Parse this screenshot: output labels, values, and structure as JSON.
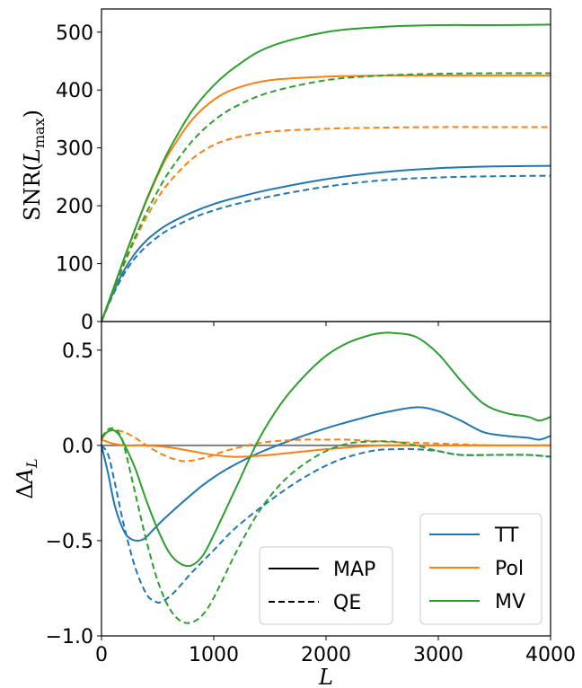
{
  "figure": {
    "top_ylabel": "SNR(L_max)",
    "top_ylabel_main": "SNR(",
    "top_ylabel_var": "L",
    "top_ylabel_sub": "max",
    "top_ylabel_close": ")",
    "bottom_ylabel_delta": "Δ",
    "bottom_ylabel_var": "A",
    "bottom_ylabel_sub": "L",
    "xlabel": "L"
  },
  "legend_style": {
    "title": "",
    "entries": [
      {
        "label": "MAP",
        "dash": "solid"
      },
      {
        "label": "QE",
        "dash": "dashed"
      }
    ]
  },
  "legend_color": {
    "title": "",
    "entries": [
      {
        "label": "TT",
        "color": "#1f77b4"
      },
      {
        "label": "Pol",
        "color": "#ff7f0e"
      },
      {
        "label": "MV",
        "color": "#2ca02c"
      }
    ]
  },
  "chart_data": [
    {
      "type": "line",
      "panel": "top",
      "xlim": [
        0,
        4000
      ],
      "ylim": [
        0,
        540
      ],
      "xticks": [
        0,
        1000,
        2000,
        3000,
        4000
      ],
      "yticks": [
        0,
        100,
        200,
        300,
        400,
        500
      ],
      "ylabel": "SNR(L_max)",
      "series": [
        {
          "name": "TT",
          "style": "solid",
          "color": "#1f77b4",
          "x": [
            0,
            100,
            200,
            300,
            400,
            500,
            600,
            800,
            1000,
            1200,
            1500,
            2000,
            2500,
            3000,
            3500,
            4000
          ],
          "y": [
            0,
            48,
            88,
            118,
            140,
            156,
            169,
            188,
            203,
            214,
            228,
            246,
            258,
            265,
            268,
            269
          ]
        },
        {
          "name": "TT",
          "style": "dashed",
          "color": "#1f77b4",
          "x": [
            0,
            100,
            200,
            300,
            400,
            500,
            600,
            800,
            1000,
            1200,
            1500,
            2000,
            2500,
            3000,
            3500,
            4000
          ],
          "y": [
            0,
            45,
            82,
            110,
            130,
            146,
            159,
            178,
            192,
            203,
            216,
            233,
            244,
            249,
            251,
            252
          ]
        },
        {
          "name": "Pol",
          "style": "solid",
          "color": "#ff7f0e",
          "x": [
            0,
            100,
            200,
            300,
            400,
            500,
            600,
            800,
            1000,
            1200,
            1500,
            2000,
            2500,
            3000,
            3500,
            4000
          ],
          "y": [
            0,
            53,
            108,
            160,
            208,
            252,
            290,
            347,
            383,
            403,
            417,
            423,
            425,
            425,
            425,
            425
          ]
        },
        {
          "name": "Pol",
          "style": "dashed",
          "color": "#ff7f0e",
          "x": [
            0,
            100,
            200,
            300,
            400,
            500,
            600,
            800,
            1000,
            1200,
            1500,
            2000,
            2500,
            3000,
            3500,
            4000
          ],
          "y": [
            0,
            50,
            98,
            142,
            180,
            213,
            240,
            280,
            305,
            318,
            328,
            333,
            335,
            336,
            336,
            336
          ]
        },
        {
          "name": "MV",
          "style": "solid",
          "color": "#2ca02c",
          "x": [
            0,
            100,
            200,
            300,
            400,
            500,
            600,
            800,
            1000,
            1200,
            1500,
            2000,
            2500,
            3000,
            3500,
            4000
          ],
          "y": [
            0,
            54,
            108,
            160,
            210,
            255,
            296,
            362,
            408,
            441,
            475,
            500,
            509,
            512,
            512,
            513
          ]
        },
        {
          "name": "MV",
          "style": "dashed",
          "color": "#2ca02c",
          "x": [
            0,
            100,
            200,
            300,
            400,
            500,
            600,
            800,
            1000,
            1200,
            1500,
            2000,
            2500,
            3000,
            3500,
            4000
          ],
          "y": [
            0,
            50,
            100,
            146,
            188,
            225,
            258,
            310,
            347,
            372,
            396,
            417,
            425,
            428,
            429,
            429
          ]
        }
      ]
    },
    {
      "type": "line",
      "panel": "bottom",
      "xlim": [
        0,
        4000
      ],
      "ylim": [
        -1.0,
        0.65
      ],
      "xticks": [
        0,
        1000,
        2000,
        3000,
        4000
      ],
      "yticks": [
        -1.0,
        -0.5,
        0.0,
        0.5
      ],
      "ytick_labels": [
        "−1.0",
        "−0.5",
        "0.0",
        "0.5"
      ],
      "xlabel": "L",
      "ylabel": "ΔA_L",
      "reference_line": {
        "y": 0,
        "color": "#7f7f7f"
      },
      "series": [
        {
          "name": "TT",
          "style": "solid",
          "color": "#1f77b4",
          "x": [
            0,
            60,
            120,
            200,
            260,
            320,
            380,
            450,
            550,
            700,
            900,
            1100,
            1400,
            1700,
            2000,
            2300,
            2500,
            2800,
            3000,
            3200,
            3400,
            3600,
            3800,
            3900,
            4000
          ],
          "y": [
            0,
            -0.15,
            -0.32,
            -0.45,
            -0.49,
            -0.5,
            -0.49,
            -0.45,
            -0.39,
            -0.31,
            -0.21,
            -0.13,
            -0.04,
            0.03,
            0.09,
            0.14,
            0.17,
            0.2,
            0.18,
            0.13,
            0.07,
            0.05,
            0.04,
            0.03,
            0.05
          ]
        },
        {
          "name": "TT",
          "style": "dashed",
          "color": "#1f77b4",
          "x": [
            0,
            60,
            120,
            200,
            300,
            400,
            480,
            540,
            650,
            800,
            1000,
            1200,
            1500,
            1800,
            2100,
            2400,
            2600,
            2800,
            3000,
            3200,
            3500,
            3800,
            4000
          ],
          "y": [
            0,
            -0.05,
            -0.2,
            -0.42,
            -0.64,
            -0.78,
            -0.82,
            -0.82,
            -0.77,
            -0.67,
            -0.55,
            -0.43,
            -0.29,
            -0.17,
            -0.08,
            -0.03,
            -0.02,
            -0.02,
            -0.03,
            -0.05,
            -0.05,
            -0.05,
            -0.06
          ]
        },
        {
          "name": "Pol",
          "style": "solid",
          "color": "#ff7f0e",
          "x": [
            0,
            100,
            200,
            300,
            400,
            600,
            800,
            1000,
            1200,
            1500,
            2000,
            2500,
            3000,
            3500,
            4000
          ],
          "y": [
            0.03,
            0.01,
            0.0,
            0.0,
            0.0,
            -0.01,
            -0.03,
            -0.05,
            -0.06,
            -0.05,
            -0.02,
            0.0,
            0.0,
            0.0,
            0.0
          ]
        },
        {
          "name": "Pol",
          "style": "dashed",
          "color": "#ff7f0e",
          "x": [
            0,
            50,
            120,
            200,
            300,
            400,
            550,
            700,
            800,
            950,
            1100,
            1300,
            1500,
            1800,
            2000,
            2200,
            2500,
            3000,
            3500,
            4000
          ],
          "y": [
            0.03,
            0.07,
            0.08,
            0.07,
            0.04,
            0.0,
            -0.05,
            -0.08,
            -0.08,
            -0.06,
            -0.03,
            0.0,
            0.02,
            0.03,
            0.03,
            0.03,
            0.02,
            0.01,
            0.0,
            0.0
          ]
        },
        {
          "name": "MV",
          "style": "solid",
          "color": "#2ca02c",
          "x": [
            0,
            50,
            100,
            150,
            200,
            300,
            400,
            500,
            600,
            700,
            800,
            900,
            1000,
            1200,
            1400,
            1600,
            1800,
            2000,
            2200,
            2400,
            2500,
            2600,
            2800,
            3000,
            3200,
            3400,
            3600,
            3800,
            3900,
            4000
          ],
          "y": [
            0.04,
            0.07,
            0.08,
            0.06,
            0.01,
            -0.12,
            -0.29,
            -0.44,
            -0.56,
            -0.62,
            -0.63,
            -0.58,
            -0.47,
            -0.22,
            0.03,
            0.22,
            0.36,
            0.47,
            0.54,
            0.58,
            0.59,
            0.59,
            0.57,
            0.48,
            0.34,
            0.22,
            0.17,
            0.15,
            0.13,
            0.15
          ]
        },
        {
          "name": "MV",
          "style": "dashed",
          "color": "#2ca02c",
          "x": [
            0,
            50,
            100,
            150,
            200,
            300,
            400,
            500,
            600,
            700,
            800,
            900,
            1000,
            1200,
            1400,
            1600,
            1800,
            2000,
            2200,
            2400,
            2600,
            2800,
            3000,
            3200,
            3500,
            3800,
            4000
          ],
          "y": [
            0.04,
            0.08,
            0.09,
            0.07,
            0.0,
            -0.25,
            -0.5,
            -0.71,
            -0.85,
            -0.92,
            -0.93,
            -0.89,
            -0.8,
            -0.56,
            -0.35,
            -0.2,
            -0.1,
            -0.03,
            0.01,
            0.02,
            0.02,
            0.0,
            -0.03,
            -0.05,
            -0.05,
            -0.05,
            -0.06
          ]
        }
      ]
    }
  ]
}
